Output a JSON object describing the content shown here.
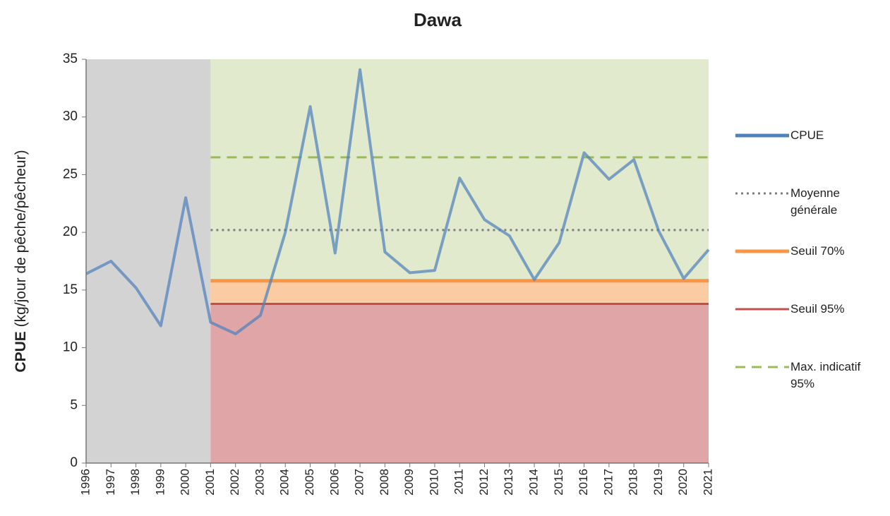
{
  "chart_data": {
    "type": "line",
    "title": "Dawa",
    "y_label": {
      "main": "CPUE",
      "unit": "(kg/jour de pêche/pêcheur)"
    },
    "categories": [
      "1996",
      "1997",
      "1998",
      "1999",
      "2000",
      "2001",
      "2002",
      "2003",
      "2004",
      "2005",
      "2006",
      "2007",
      "2008",
      "2009",
      "2010",
      "2011",
      "2012",
      "2013",
      "2014",
      "2015",
      "2016",
      "2017",
      "2018",
      "2019",
      "2020",
      "2021"
    ],
    "ylim": [
      0,
      35
    ],
    "yticks": [
      0,
      5,
      10,
      15,
      20,
      25,
      30,
      35
    ],
    "series": [
      {
        "name": "CPUE",
        "color": "#4f81bd",
        "style": "solid",
        "values": [
          16.4,
          17.5,
          15.2,
          11.9,
          23.0,
          12.2,
          11.2,
          12.8,
          20.0,
          30.9,
          18.2,
          34.1,
          18.3,
          16.5,
          16.7,
          24.7,
          21.1,
          19.7,
          15.9,
          19.1,
          26.9,
          24.6,
          26.3,
          20.1,
          16.0,
          18.5
        ]
      },
      {
        "name": "Moyenne générale",
        "color": "#7f7f7f",
        "style": "dotted",
        "values": [
          null,
          null,
          null,
          null,
          null,
          20.2,
          20.2,
          20.2,
          20.2,
          20.2,
          20.2,
          20.2,
          20.2,
          20.2,
          20.2,
          20.2,
          20.2,
          20.2,
          20.2,
          20.2,
          20.2,
          20.2,
          20.2,
          20.2,
          20.2,
          20.2
        ]
      },
      {
        "name": "Seuil 70%",
        "color": "#f79646",
        "style": "solid",
        "values": [
          null,
          null,
          null,
          null,
          null,
          15.8,
          15.8,
          15.8,
          15.8,
          15.8,
          15.8,
          15.8,
          15.8,
          15.8,
          15.8,
          15.8,
          15.8,
          15.8,
          15.8,
          15.8,
          15.8,
          15.8,
          15.8,
          15.8,
          15.8,
          15.8
        ]
      },
      {
        "name": "Seuil 95%",
        "color": "#c0504d",
        "style": "solid",
        "values": [
          null,
          null,
          null,
          null,
          null,
          13.8,
          13.8,
          13.8,
          13.8,
          13.8,
          13.8,
          13.8,
          13.8,
          13.8,
          13.8,
          13.8,
          13.8,
          13.8,
          13.8,
          13.8,
          13.8,
          13.8,
          13.8,
          13.8,
          13.8,
          13.8
        ]
      },
      {
        "name": "Max. indicatif 95%",
        "color": "#9bbb59",
        "style": "dashed",
        "values": [
          null,
          null,
          null,
          null,
          null,
          26.5,
          26.5,
          26.5,
          26.5,
          26.5,
          26.5,
          26.5,
          26.5,
          26.5,
          26.5,
          26.5,
          26.5,
          26.5,
          26.5,
          26.5,
          26.5,
          26.5,
          26.5,
          26.5,
          26.5,
          26.5
        ]
      }
    ]
  }
}
